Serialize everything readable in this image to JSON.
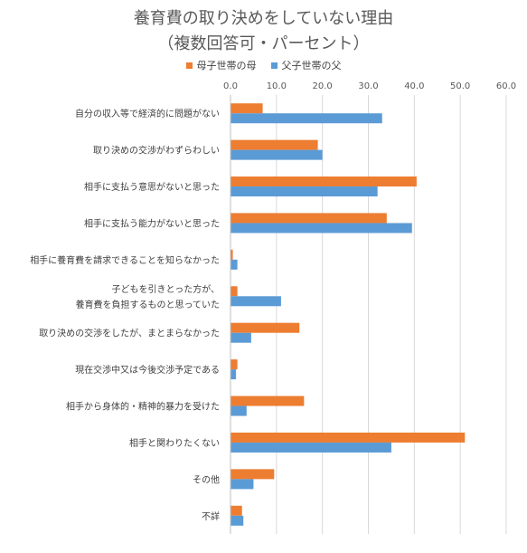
{
  "chart_data": {
    "type": "bar",
    "orientation": "horizontal",
    "title": [
      "養育費の取り決めをしていない理由",
      "（複数回答可・パーセント）"
    ],
    "xlim": [
      0,
      60
    ],
    "ticks": [
      "0.0",
      "10.0",
      "20.0",
      "30.0",
      "40.0",
      "50.0",
      "60.0"
    ],
    "tick_values": [
      0,
      10,
      20,
      30,
      40,
      50,
      60
    ],
    "grid": true,
    "legend_position": "top",
    "categories": [
      [
        "自分の収入等で経済的に問題がない"
      ],
      [
        "取り決めの交渉がわずらわしい"
      ],
      [
        "相手に支払う意思がないと思った"
      ],
      [
        "相手に支払う能力がないと思った"
      ],
      [
        "相手に養育費を請求できることを知らなかった"
      ],
      [
        "子どもを引きとった方が、",
        "養育費を負担するものと思っていた"
      ],
      [
        "取り決めの交渉をしたが、まとまらなかった"
      ],
      [
        "現在交渉中又は今後交渉予定である"
      ],
      [
        "相手から身体的・精神的暴力を受けた"
      ],
      [
        "相手と関わりたくない"
      ],
      [
        "その他"
      ],
      [
        "不詳"
      ]
    ],
    "series": [
      {
        "name": "母子世帯の母",
        "color": "#ED7D31",
        "values": [
          7.0,
          19.0,
          40.5,
          34.0,
          0.5,
          1.5,
          15.0,
          1.5,
          16.0,
          51.0,
          9.5,
          2.5
        ]
      },
      {
        "name": "父子世帯の父",
        "color": "#5B9BD5",
        "values": [
          33.0,
          20.0,
          32.0,
          39.5,
          1.5,
          11.0,
          4.5,
          1.2,
          3.5,
          35.0,
          5.0,
          2.8
        ]
      }
    ]
  }
}
